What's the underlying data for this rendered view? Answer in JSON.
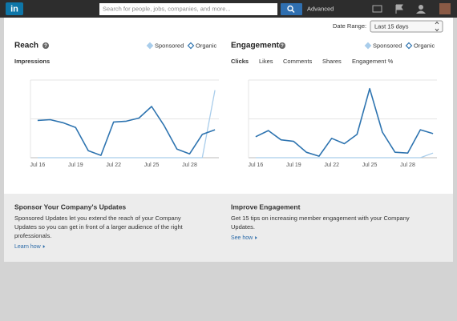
{
  "header": {
    "logo": "in",
    "search_placeholder": "Search for people, jobs, companies, and more...",
    "advanced": "Advanced"
  },
  "date_range": {
    "label": "Date Range:",
    "selected": "Last 15 days"
  },
  "chart_data": [
    {
      "type": "line",
      "title": "Reach",
      "subtitle": "Impressions",
      "categories": [
        "Jul 16",
        null,
        null,
        "Jul 19",
        null,
        null,
        "Jul 22",
        null,
        null,
        "Jul 25",
        null,
        null,
        "Jul 28",
        null,
        null
      ],
      "series": [
        {
          "name": "Sponsored",
          "color": "#a9cdeb",
          "values": [
            0,
            0,
            0,
            0,
            0,
            0,
            0,
            0,
            0,
            0,
            0,
            0,
            0,
            0,
            87
          ]
        },
        {
          "name": "Organic",
          "color": "#2e74b0",
          "values": [
            48,
            49,
            45,
            39,
            9,
            3,
            46,
            47,
            51,
            66,
            41,
            11,
            5,
            30,
            36
          ]
        }
      ],
      "ylim": [
        0,
        100
      ],
      "yticks": [
        0,
        50,
        100
      ],
      "grid": true
    },
    {
      "type": "line",
      "title": "Engagement",
      "tabs": [
        "Clicks",
        "Likes",
        "Comments",
        "Shares",
        "Engagement %"
      ],
      "categories": [
        "Jul 16",
        null,
        null,
        "Jul 19",
        null,
        null,
        "Jul 22",
        null,
        null,
        "Jul 25",
        null,
        null,
        "Jul 28",
        null,
        null
      ],
      "series": [
        {
          "name": "Sponsored",
          "color": "#a9cdeb",
          "values": [
            0,
            0,
            0,
            0,
            0,
            0,
            0,
            0,
            0,
            0,
            0,
            0,
            0,
            0,
            6
          ]
        },
        {
          "name": "Organic",
          "color": "#2e74b0",
          "values": [
            27,
            35,
            23,
            21,
            7,
            2,
            25,
            18,
            30,
            89,
            33,
            7,
            6,
            36,
            31
          ]
        }
      ],
      "ylim": [
        0,
        100
      ],
      "yticks": [
        0,
        50,
        100
      ],
      "grid": true
    }
  ],
  "promos": [
    {
      "title": "Sponsor Your Company's Updates",
      "body_lines": [
        "Sponsored Updates let you extend the reach of your Company",
        "Updates so you can get in front of a larger audience of the right",
        "professionals."
      ],
      "link": "Learn how"
    },
    {
      "title": "Improve Engagement",
      "body_lines": [
        "Get 15 tips on increasing member engagement with your Company",
        "Updates."
      ],
      "link": "See how"
    }
  ]
}
